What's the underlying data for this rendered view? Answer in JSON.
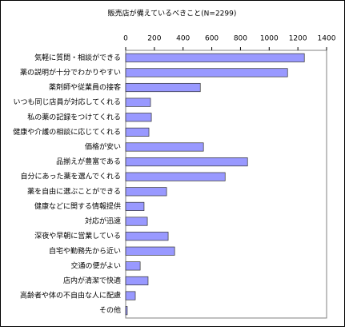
{
  "chart_data": {
    "type": "hbar",
    "title": "販売店が備えているべきこと(N=2299)",
    "categories": [
      "気軽に質問・相談ができる",
      "薬の説明が十分でわかりやすい",
      "薬剤師や従業員の接客",
      "いつも同じ店員が対応してくれる",
      "私の薬の記録をつけてくれる",
      "健康や介護の相談に応じてくれる",
      "価格が安い",
      "品揃えが豊富である",
      "自分にあった薬を選んでくれる",
      "薬を自由に選ぶことができる",
      "健康などに関する情報提供",
      "対応が迅速",
      "深夜や早朝に営業している",
      "自宅や勤務先から近い",
      "交通の便がよい",
      "店内が清潔で快適",
      "高齢者や体の不自由な人に配慮",
      "その他"
    ],
    "values": [
      1245,
      1128,
      520,
      173,
      179,
      162,
      542,
      849,
      693,
      285,
      128,
      151,
      296,
      341,
      101,
      156,
      67,
      11
    ],
    "color": "#9999ff",
    "xlim": [
      0,
      1400
    ],
    "xticks": [
      0,
      200,
      400,
      600,
      800,
      1000,
      1200,
      1400
    ],
    "grid": false
  }
}
